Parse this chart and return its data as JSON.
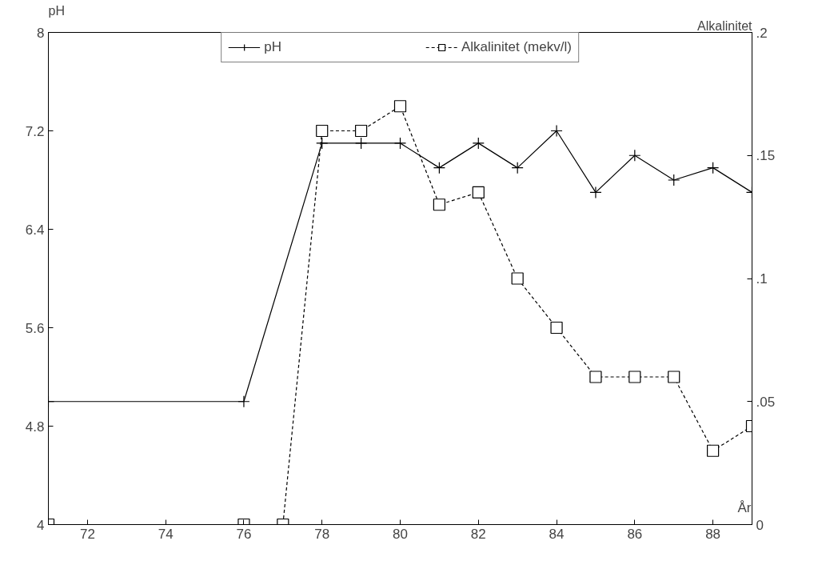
{
  "chart_data": {
    "type": "line",
    "xlabel": "År",
    "ylabel": "pH",
    "y2label": "Alkalinitet",
    "xlim": [
      71,
      89
    ],
    "xticks": [
      72,
      74,
      76,
      78,
      80,
      82,
      84,
      86,
      88
    ],
    "ylim": [
      4,
      8
    ],
    "yticks": [
      4,
      4.8,
      5.6,
      6.4,
      7.2,
      8
    ],
    "y2lim": [
      0,
      0.2
    ],
    "y2ticks": [
      {
        "value": 0,
        "label": "0"
      },
      {
        "value": 0.05,
        "label": ".05"
      },
      {
        "value": 0.1,
        "label": ".1"
      },
      {
        "value": 0.15,
        "label": ".15"
      },
      {
        "value": 0.2,
        "label": ".2"
      }
    ],
    "grid": false,
    "legend": "top",
    "series": [
      {
        "name": "pH",
        "color": "#000000",
        "marker": "cross",
        "line_style": "solid",
        "x": [
          71,
          76,
          78,
          79,
          80,
          81,
          82,
          83,
          84,
          85,
          86,
          87,
          88,
          89
        ],
        "values": [
          5.0,
          5.0,
          7.1,
          7.1,
          7.1,
          6.9,
          7.1,
          6.9,
          7.2,
          6.7,
          7.0,
          6.8,
          6.9,
          6.7
        ]
      },
      {
        "name": "Alkalinitet (mekv/l)",
        "color": "#000000",
        "marker": "square",
        "line_style": "dashed",
        "axis": "y2",
        "x": [
          71,
          76,
          77,
          78,
          79,
          80,
          81,
          82,
          83,
          84,
          85,
          86,
          87,
          88,
          89
        ],
        "values": [
          0,
          0,
          0,
          0.16,
          0.16,
          0.17,
          0.13,
          0.135,
          0.1,
          0.08,
          0.06,
          0.06,
          0.06,
          0.03,
          0.04
        ]
      }
    ]
  }
}
